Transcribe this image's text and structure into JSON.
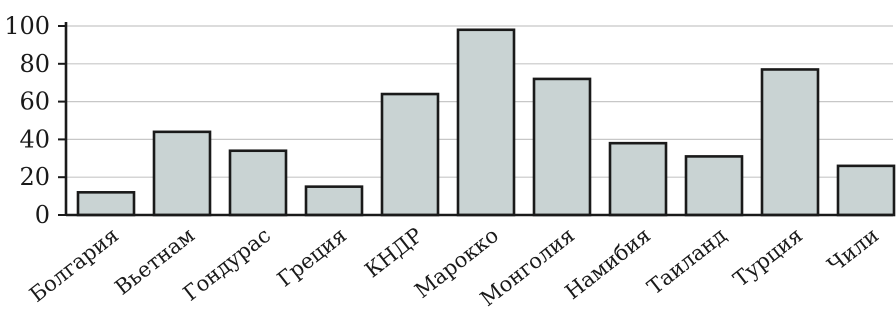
{
  "chart_data": {
    "type": "bar",
    "categories": [
      "Болгария",
      "Вьетнам",
      "Гондурас",
      "Греция",
      "КНДР",
      "Марокко",
      "Монголия",
      "Намибия",
      "Таиланд",
      "Турция",
      "Чили"
    ],
    "values": [
      12,
      44,
      34,
      15,
      64,
      98,
      72,
      38,
      31,
      77,
      26
    ],
    "title": "",
    "xlabel": "",
    "ylabel": "",
    "ylim": [
      0,
      100
    ],
    "yticks": [
      0,
      20,
      40,
      60,
      80,
      100
    ],
    "grid": true,
    "legend": "none",
    "colors": {
      "bar_fill": "#c9d3d3",
      "bar_stroke": "#1a1a1a",
      "grid": "#c7c7c7"
    }
  }
}
